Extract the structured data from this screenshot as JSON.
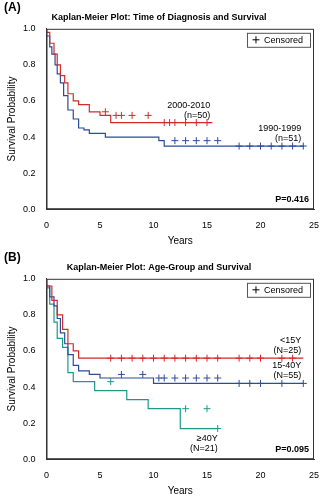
{
  "chart_data": [
    {
      "type": "line",
      "panel": "(A)",
      "title": "Kaplan-Meier Plot: Time of Diagnosis and Survival",
      "x_label": "Years",
      "y_label": "Survival Probability",
      "xlim": [
        0,
        25
      ],
      "xticks": [
        0,
        5,
        10,
        15,
        20,
        25
      ],
      "ylim": [
        0,
        1
      ],
      "yticks": [
        {
          "value": 0,
          "label": "0.0"
        },
        0.2,
        0.4,
        0.6,
        0.8,
        {
          "value": 1,
          "label": "1.0"
        }
      ],
      "grid": false,
      "legend": "upper right",
      "legend_label": "Censored",
      "marker": "cross",
      "annotations": [
        "P=0.416"
      ],
      "series": [
        {
          "name": "2000-2010",
          "n_label": "(n=50)",
          "color": "#d42a2a",
          "line_style": "step",
          "x": [
            0,
            0.3,
            0.7,
            1.0,
            1.3,
            1.7,
            2.0,
            2.5,
            3.0,
            4.0,
            5.0,
            6.0,
            10.5,
            15.5
          ],
          "values": [
            1,
            0.98,
            0.92,
            0.86,
            0.8,
            0.74,
            0.7,
            0.64,
            0.6,
            0.58,
            0.54,
            0.52,
            0.48,
            0.48
          ],
          "censored_x": [
            5.5,
            6.5,
            7,
            8,
            9.5,
            11,
            11.5,
            12,
            13,
            14,
            15
          ],
          "censored_values": [
            0.54,
            0.52,
            0.52,
            0.52,
            0.52,
            0.48,
            0.48,
            0.48,
            0.48,
            0.48,
            0.48
          ]
        },
        {
          "name": "1990-1999",
          "n_label": "(n=51)",
          "color": "#2b4c9b",
          "line_style": "step",
          "x": [
            0,
            0.3,
            0.5,
            0.8,
            1.0,
            1.3,
            1.6,
            2.0,
            2.5,
            3.0,
            3.5,
            4.0,
            5.5,
            10.5,
            11.0,
            17.0,
            24.0
          ],
          "values": [
            1,
            0.96,
            0.9,
            0.86,
            0.8,
            0.75,
            0.7,
            0.63,
            0.55,
            0.5,
            0.45,
            0.44,
            0.42,
            0.4,
            0.38,
            0.35,
            0.35
          ],
          "censored_x": [
            12,
            13,
            14,
            15,
            16,
            18,
            19,
            20,
            21,
            22,
            23,
            24
          ],
          "censored_values": [
            0.38,
            0.38,
            0.38,
            0.38,
            0.38,
            0.35,
            0.35,
            0.35,
            0.35,
            0.35,
            0.35,
            0.35
          ]
        }
      ]
    },
    {
      "type": "line",
      "panel": "(B)",
      "title": "Kaplan-Meier Plot: Age-Group and Survival",
      "x_label": "Years",
      "y_label": "Survival Probability",
      "xlim": [
        0,
        25
      ],
      "xticks": [
        0,
        5,
        10,
        15,
        20,
        25
      ],
      "ylim": [
        0,
        1
      ],
      "yticks": [
        {
          "value": 0,
          "label": "0.0"
        },
        0.2,
        0.4,
        0.6,
        0.8,
        {
          "value": 1,
          "label": "1.0"
        }
      ],
      "grid": false,
      "legend": "upper right",
      "legend_label": "Censored",
      "marker": "cross",
      "annotations": [
        "P=0.095"
      ],
      "series": [
        {
          "name": "<15Y",
          "n_label": "(N=25)",
          "color": "#d42a2a",
          "line_style": "step",
          "x": [
            0,
            0.5,
            1.0,
            1.5,
            2.0,
            2.5,
            3.0,
            5.0,
            24.0
          ],
          "values": [
            1,
            0.96,
            0.88,
            0.8,
            0.72,
            0.64,
            0.6,
            0.56,
            0.56
          ],
          "censored_x": [
            6,
            7,
            8,
            9,
            10,
            11,
            12,
            13,
            14,
            15,
            16,
            18,
            19,
            20,
            22,
            23
          ],
          "censored_values": [
            0.56,
            0.56,
            0.56,
            0.56,
            0.56,
            0.56,
            0.56,
            0.56,
            0.56,
            0.56,
            0.56,
            0.56,
            0.56,
            0.56,
            0.56,
            0.56
          ]
        },
        {
          "name": "15-40Y",
          "n_label": "(N=55)",
          "color": "#2b4c9b",
          "line_style": "step",
          "x": [
            0,
            0.3,
            0.7,
            1.0,
            1.3,
            1.7,
            2.0,
            2.5,
            3.0,
            4.0,
            5.0,
            10.0,
            16.5,
            24.0
          ],
          "values": [
            1,
            0.96,
            0.9,
            0.85,
            0.78,
            0.7,
            0.64,
            0.58,
            0.52,
            0.49,
            0.47,
            0.45,
            0.42,
            0.42
          ],
          "censored_x": [
            7,
            9,
            10.5,
            11,
            12,
            13,
            14,
            15,
            16,
            18,
            19,
            20,
            22,
            24
          ],
          "censored_values": [
            0.47,
            0.47,
            0.45,
            0.45,
            0.45,
            0.45,
            0.45,
            0.45,
            0.45,
            0.42,
            0.42,
            0.42,
            0.42,
            0.42
          ]
        },
        {
          "name": "≥40Y",
          "n_label": "(N=21)",
          "color": "#1a9a8a",
          "line_style": "step",
          "x": [
            0,
            0.3,
            0.7,
            1.0,
            1.5,
            2.0,
            2.5,
            4.5,
            7.5,
            9.5,
            12.5,
            15.5,
            16.0
          ],
          "values": [
            1,
            0.95,
            0.86,
            0.76,
            0.67,
            0.62,
            0.48,
            0.43,
            0.38,
            0.33,
            0.28,
            0.17,
            0.17
          ],
          "censored_x": [
            6,
            13,
            15,
            16
          ],
          "censored_values": [
            0.43,
            0.28,
            0.28,
            0.17
          ]
        }
      ]
    }
  ]
}
